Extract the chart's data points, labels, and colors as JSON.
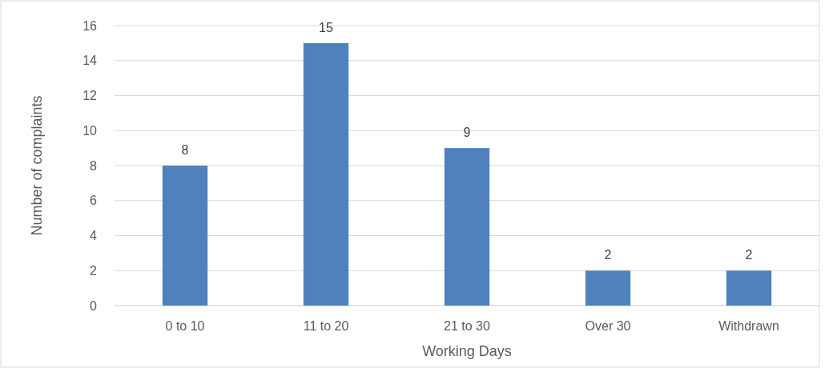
{
  "chart_data": {
    "type": "bar",
    "xlabel": "Working Days",
    "ylabel": "Number of complaints",
    "categories": [
      "0 to 10",
      "11 to 20",
      "21 to 30",
      "Over 30",
      "Withdrawn"
    ],
    "values": [
      8,
      15,
      9,
      2,
      2
    ],
    "color": "#4f81bd",
    "ylim": [
      0,
      16
    ],
    "yticks": [
      0,
      2,
      4,
      6,
      8,
      10,
      12,
      14,
      16
    ],
    "grid": "y",
    "data_labels": true
  }
}
